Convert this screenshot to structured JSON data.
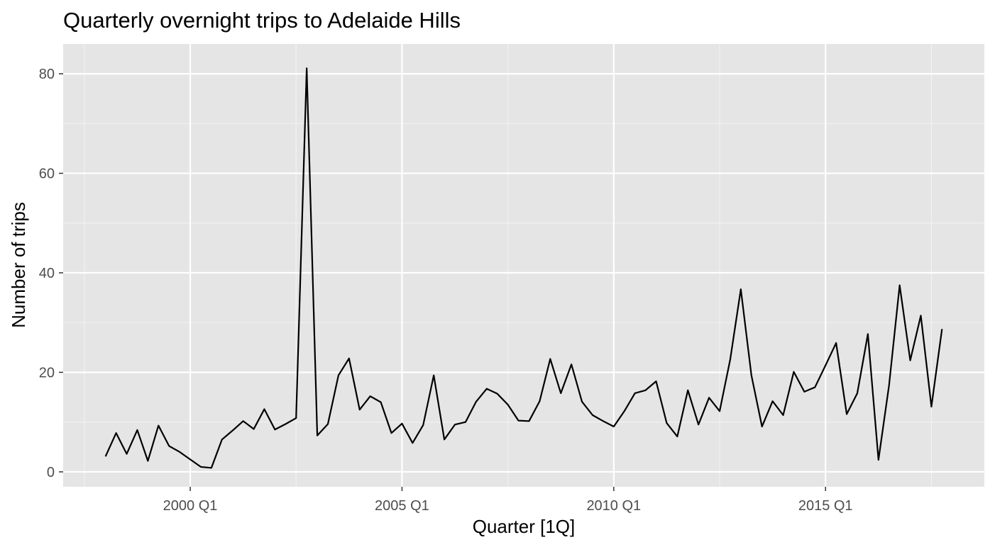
{
  "chart_data": {
    "type": "line",
    "title": "Quarterly overnight trips to Adelaide Hills",
    "xlabel": "Quarter [1Q]",
    "ylabel": "Number of trips",
    "x_ticks": [
      "2000 Q1",
      "2005 Q1",
      "2010 Q1",
      "2015 Q1"
    ],
    "y_ticks": [
      0,
      20,
      40,
      60,
      80
    ],
    "ylim": [
      -3,
      86
    ],
    "xlim": [
      "1997 Q1",
      "2018 Q4"
    ],
    "grid": true,
    "x_start_quarter": "1998 Q1",
    "series": [
      {
        "values": [
          3.1,
          7.8,
          3.6,
          8.4,
          2.2,
          9.3,
          5.2,
          4.0,
          2.5,
          1.0,
          0.8,
          6.5,
          8.3,
          10.2,
          8.6,
          12.6,
          8.5,
          9.6,
          10.8,
          81.1,
          7.3,
          9.6,
          19.4,
          22.8,
          12.5,
          15.2,
          14.0,
          7.8,
          9.7,
          5.8,
          9.4,
          19.4,
          6.5,
          9.5,
          10.0,
          14.1,
          16.7,
          15.7,
          13.5,
          10.3,
          10.2,
          14.2,
          22.7,
          15.8,
          21.6,
          14.1,
          11.4,
          10.2,
          9.1,
          12.2,
          15.8,
          16.4,
          18.2,
          9.8,
          7.1,
          16.4,
          9.5,
          14.9,
          12.2,
          22.6,
          36.7,
          19.4,
          9.1,
          14.2,
          11.4,
          20.1,
          16.1,
          17.0,
          21.4,
          25.9,
          11.6,
          15.8,
          27.7,
          2.4,
          17.4,
          37.5,
          22.4,
          31.4,
          13.1,
          28.7
        ],
        "color": "#000000"
      }
    ],
    "colors": {
      "panel_background": "#e5e5e5",
      "grid_major": "#ffffff",
      "grid_minor": "#f2f2f2",
      "line": "#000000"
    }
  }
}
